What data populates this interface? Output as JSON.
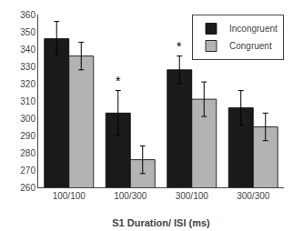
{
  "chart_data": {
    "type": "bar",
    "categories": [
      "100/100",
      "100/300",
      "300/100",
      "300/300"
    ],
    "series": [
      {
        "name": "Incongruent",
        "color": "#1a1a1a",
        "values": [
          346,
          303,
          328,
          306
        ],
        "errors": [
          10,
          13,
          8,
          10
        ]
      },
      {
        "name": "Congruent",
        "color": "#b3b3b3",
        "values": [
          336,
          276,
          311,
          295
        ],
        "errors": [
          8,
          8,
          10,
          8
        ]
      }
    ],
    "xlabel": "S1 Duration/ ISI (ms)",
    "ylim": [
      260,
      360
    ],
    "yticks": [
      260,
      270,
      280,
      290,
      300,
      310,
      320,
      330,
      340,
      350,
      360
    ],
    "annotations": [
      {
        "text": "*",
        "category": "100/300",
        "series": "Incongruent"
      },
      {
        "text": "*",
        "category": "300/100",
        "series": "Incongruent"
      }
    ],
    "legend": "upper right",
    "grid": false
  }
}
